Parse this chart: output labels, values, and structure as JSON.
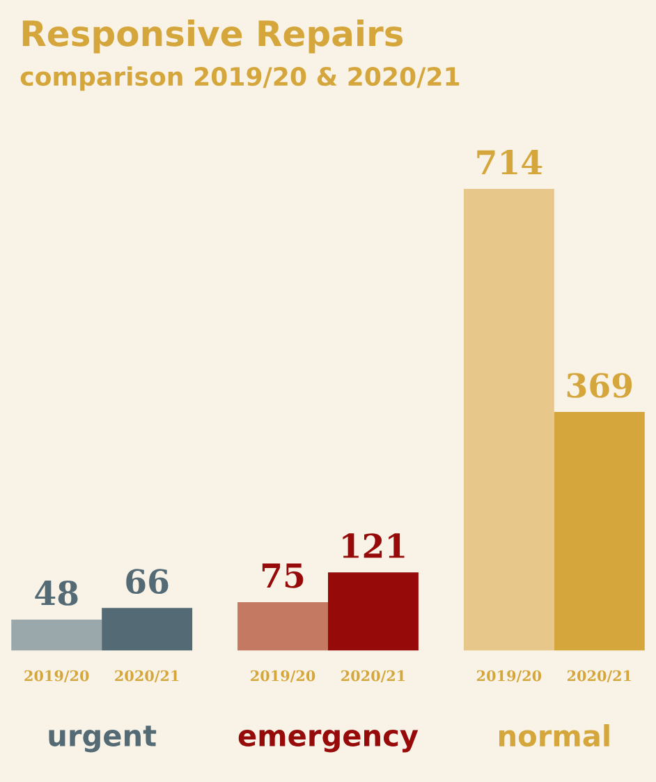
{
  "chart_data": {
    "type": "bar",
    "title": "Responsive Repairs",
    "subtitle": "comparison 2019/20 & 2020/21",
    "categories": [
      "urgent",
      "emergency",
      "normal"
    ],
    "series": [
      {
        "name": "2019/20",
        "colors": [
          "#9ba8ab",
          "#c47a62",
          "#e8c88a"
        ],
        "values": [
          48,
          75,
          714
        ]
      },
      {
        "name": "2020/21",
        "colors": [
          "#546b76",
          "#960a0a",
          "#d4a63c"
        ],
        "values": [
          66,
          121,
          369
        ]
      }
    ],
    "data_labels": true,
    "legend": false
  }
}
